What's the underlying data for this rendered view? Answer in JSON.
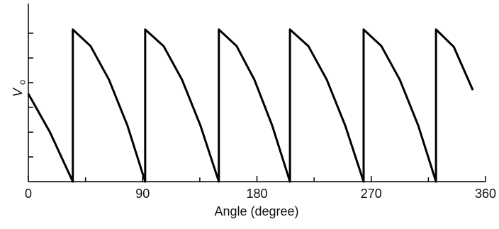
{
  "chart_data": {
    "type": "line",
    "x_label": "Angle (degree)",
    "y_label": "V",
    "y_label_sub": "o",
    "x": [
      0,
      17,
      35,
      35,
      49,
      63.5,
      78,
      92,
      92,
      106.5,
      121,
      135.5,
      150,
      150,
      164,
      178,
      192,
      206,
      206,
      220.5,
      235,
      249.5,
      264,
      264,
      278,
      292.5,
      307,
      321,
      321,
      335,
      350
    ],
    "series": [
      {
        "color": "#000000",
        "values": [
          3.55,
          2.0,
          0,
          6.15,
          5.48,
          4.12,
          2.27,
          0,
          6.15,
          5.48,
          4.12,
          2.27,
          0,
          6.15,
          5.48,
          4.12,
          2.27,
          0,
          6.15,
          5.48,
          4.12,
          2.27,
          0,
          6.15,
          5.48,
          4.12,
          2.27,
          0,
          6.15,
          5.45,
          3.7
        ]
      }
    ],
    "xlim": [
      0,
      360
    ],
    "xticks": [
      0,
      90,
      180,
      270,
      360
    ],
    "xticks_minor": [
      45,
      135,
      225,
      315
    ],
    "ylim": [
      0,
      7.2
    ],
    "yticks": [
      1,
      2,
      3,
      4,
      5,
      6
    ]
  }
}
